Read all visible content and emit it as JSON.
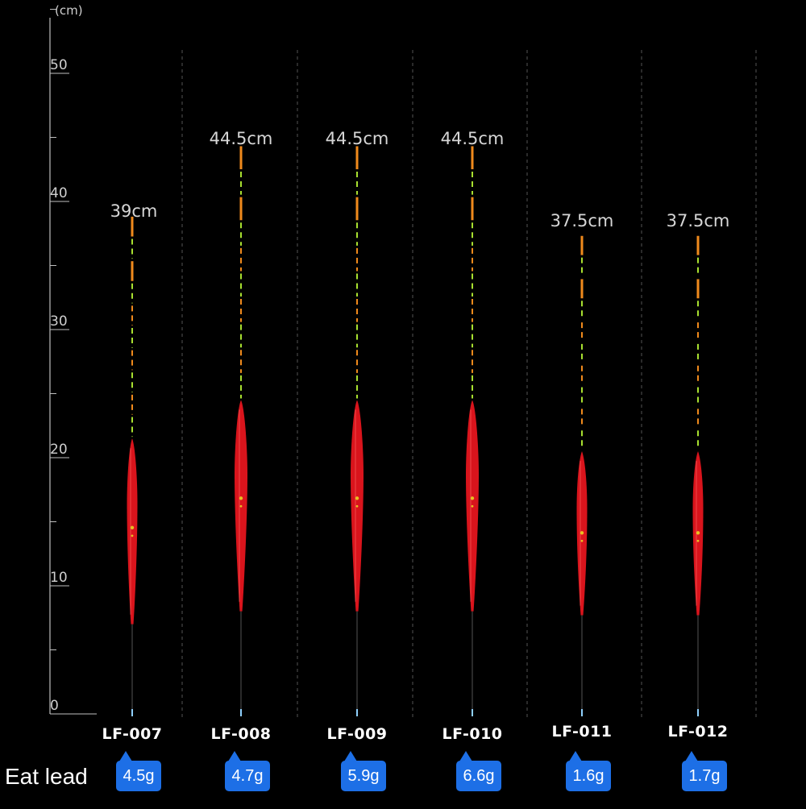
{
  "axis": {
    "unit": "(cm)",
    "ticks": [
      "0",
      "10",
      "20",
      "30",
      "40",
      "50"
    ]
  },
  "row_label": "Eat lead",
  "floats": [
    {
      "model": "LF-007",
      "length_label": "39cm",
      "weight": "4.5g",
      "length_cm": 39,
      "body_top_cm": 21.5,
      "body_bottom_cm": 7,
      "stem_bottom_cm": 0
    },
    {
      "model": "LF-008",
      "length_label": "44.5cm",
      "weight": "4.7g",
      "length_cm": 44.5,
      "body_top_cm": 24.5,
      "body_bottom_cm": 8,
      "stem_bottom_cm": 0
    },
    {
      "model": "LF-009",
      "length_label": "44.5cm",
      "weight": "5.9g",
      "length_cm": 44.5,
      "body_top_cm": 24.5,
      "body_bottom_cm": 8,
      "stem_bottom_cm": 0
    },
    {
      "model": "LF-010",
      "length_label": "44.5cm",
      "weight": "6.6g",
      "length_cm": 44.5,
      "body_top_cm": 24.5,
      "body_bottom_cm": 8,
      "stem_bottom_cm": 0
    },
    {
      "model": "LF-011",
      "length_label": "37.5cm",
      "weight": "1.6g",
      "length_cm": 37.5,
      "body_top_cm": 20.5,
      "body_bottom_cm": 7.7,
      "stem_bottom_cm": 0
    },
    {
      "model": "LF-012",
      "length_label": "37.5cm",
      "weight": "1.7g",
      "length_cm": 37.5,
      "body_top_cm": 20.5,
      "body_bottom_cm": 7.7,
      "stem_bottom_cm": 0
    }
  ],
  "colors": {
    "background": "#000000",
    "body": "#d9141c",
    "tip_orange": "#f08a1c",
    "tip_green": "#a8e030",
    "badge": "#1d6fe6",
    "grid": "#555555"
  }
}
